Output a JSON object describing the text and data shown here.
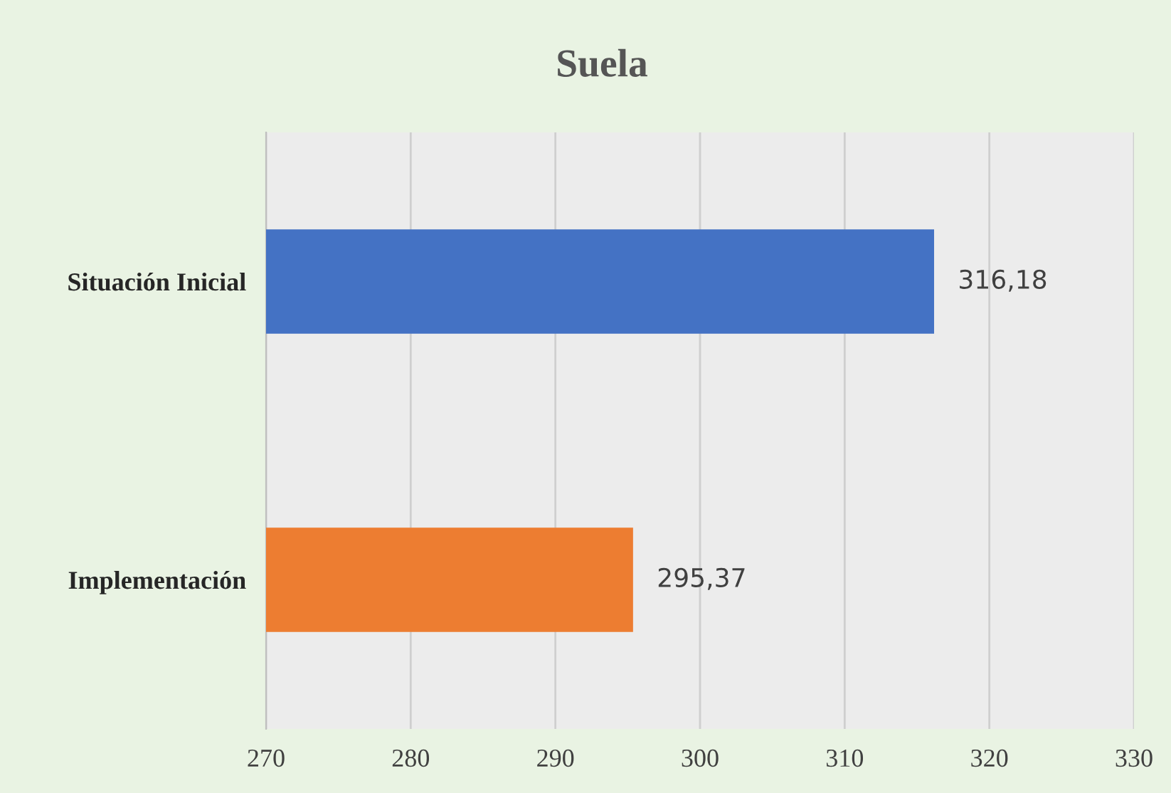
{
  "chart_data": {
    "type": "bar",
    "orientation": "horizontal",
    "title": "Suela",
    "categories": [
      "Situación Inicial",
      "Implementación"
    ],
    "values": [
      316.18,
      295.37
    ],
    "colors": [
      "#4472c4",
      "#ed7d31"
    ],
    "value_labels": [
      "316,18",
      "295,37"
    ],
    "xlim": [
      270,
      330
    ],
    "xticks": [
      270,
      280,
      290,
      300,
      310,
      320,
      330
    ],
    "grid": "x",
    "legend": false
  }
}
